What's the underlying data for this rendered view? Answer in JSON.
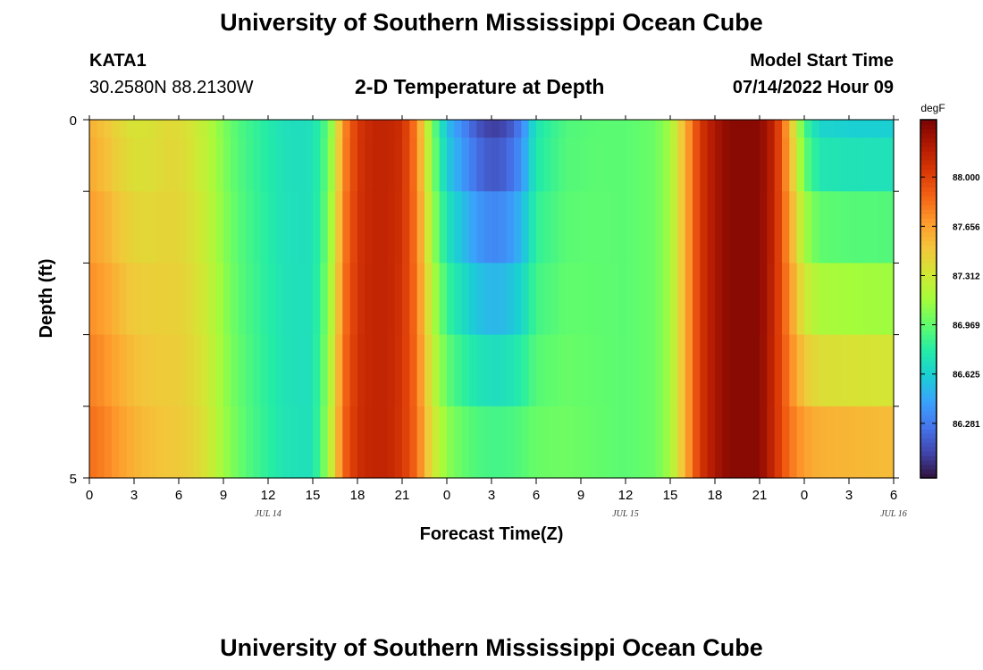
{
  "header": {
    "title": "University of Southern Mississippi Ocean Cube",
    "station": "KATA1",
    "coords": "30.2580N  88.2130W",
    "plot_title": "2-D Temperature at Depth",
    "model_start_label": "Model Start Time",
    "model_start_value": "07/14/2022 Hour 09"
  },
  "footer": {
    "title": "University of Southern Mississippi Ocean Cube"
  },
  "chart_data": {
    "type": "heatmap",
    "title": "2-D Temperature at Depth",
    "xlabel": "Forecast Time(Z)",
    "ylabel": "Depth (ft)",
    "x_tick_labels": [
      "0",
      "3",
      "6",
      "9",
      "12",
      "15",
      "18",
      "21",
      "0",
      "3",
      "6",
      "9",
      "12",
      "15",
      "18",
      "21",
      "0",
      "3",
      "6"
    ],
    "date_labels": [
      {
        "label": "JUL 14",
        "hour": 12
      },
      {
        "label": "JUL 15",
        "hour": 36
      },
      {
        "label": "JUL 16",
        "hour": 54
      }
    ],
    "y_tick_labels": [
      {
        "depth": 0,
        "label": "0"
      },
      {
        "depth": 5,
        "label": "5"
      }
    ],
    "x_range_hours": [
      0,
      54
    ],
    "y_range_ft": [
      0,
      5
    ],
    "depth_levels_ft": [
      0,
      0.5,
      1.5,
      2.5,
      3.5,
      4.5
    ],
    "colorbar": {
      "unit": "degF",
      "min": 85.9,
      "max": 88.4,
      "tick_labels": [
        "88.000",
        "87.656",
        "87.312",
        "86.969",
        "86.625",
        "86.281"
      ],
      "colors": [
        "#30123b",
        "#4145ab",
        "#4675ed",
        "#39a2fc",
        "#1bcfd4",
        "#24eca6",
        "#61fc6c",
        "#a4fc3b",
        "#d1e834",
        "#f3c63a",
        "#fe9b2d",
        "#f36315",
        "#d93806",
        "#b11901",
        "#7a0403"
      ]
    },
    "temperature_profile": [
      {
        "hour": 0,
        "surface": 87.6,
        "bottom": 87.85
      },
      {
        "hour": 1,
        "surface": 87.52,
        "bottom": 87.8
      },
      {
        "hour": 2,
        "surface": 87.42,
        "bottom": 87.7
      },
      {
        "hour": 3,
        "surface": 87.35,
        "bottom": 87.62
      },
      {
        "hour": 4,
        "surface": 87.36,
        "bottom": 87.56
      },
      {
        "hour": 5,
        "surface": 87.4,
        "bottom": 87.52
      },
      {
        "hour": 6,
        "surface": 87.4,
        "bottom": 87.5
      },
      {
        "hour": 7,
        "surface": 87.33,
        "bottom": 87.45
      },
      {
        "hour": 8,
        "surface": 87.22,
        "bottom": 87.34
      },
      {
        "hour": 9,
        "surface": 87.05,
        "bottom": 87.15
      },
      {
        "hour": 10,
        "surface": 86.92,
        "bottom": 87.0
      },
      {
        "hour": 11,
        "surface": 86.85,
        "bottom": 86.9
      },
      {
        "hour": 12,
        "surface": 86.78,
        "bottom": 86.82
      },
      {
        "hour": 13,
        "surface": 86.72,
        "bottom": 86.75
      },
      {
        "hour": 14,
        "surface": 86.7,
        "bottom": 86.72
      },
      {
        "hour": 15,
        "surface": 86.72,
        "bottom": 86.72
      },
      {
        "hour": 16,
        "surface": 86.95,
        "bottom": 87.15
      },
      {
        "hour": 16.5,
        "surface": 87.25,
        "bottom": 87.45
      },
      {
        "hour": 17,
        "surface": 87.7,
        "bottom": 87.85
      },
      {
        "hour": 18,
        "surface": 88.05,
        "bottom": 88.1
      },
      {
        "hour": 19,
        "surface": 88.15,
        "bottom": 88.15
      },
      {
        "hour": 20,
        "surface": 88.15,
        "bottom": 88.15
      },
      {
        "hour": 21,
        "surface": 88.1,
        "bottom": 88.05
      },
      {
        "hour": 22,
        "surface": 87.75,
        "bottom": 87.85
      },
      {
        "hour": 23,
        "surface": 87.05,
        "bottom": 87.4
      },
      {
        "hour": 24,
        "surface": 86.55,
        "bottom": 87.15
      },
      {
        "hour": 25,
        "surface": 86.35,
        "bottom": 87.05
      },
      {
        "hour": 26,
        "surface": 86.15,
        "bottom": 87.0
      },
      {
        "hour": 27,
        "surface": 86.05,
        "bottom": 86.98
      },
      {
        "hour": 28,
        "surface": 86.1,
        "bottom": 86.98
      },
      {
        "hour": 29,
        "surface": 86.3,
        "bottom": 87.0
      },
      {
        "hour": 30,
        "surface": 86.75,
        "bottom": 87.02
      },
      {
        "hour": 32,
        "surface": 86.92,
        "bottom": 87.02
      },
      {
        "hour": 34,
        "surface": 86.95,
        "bottom": 86.98
      },
      {
        "hour": 36,
        "surface": 86.95,
        "bottom": 86.95
      },
      {
        "hour": 38,
        "surface": 87.0,
        "bottom": 87.0
      },
      {
        "hour": 39,
        "surface": 87.15,
        "bottom": 87.15
      },
      {
        "hour": 40,
        "surface": 87.6,
        "bottom": 87.6
      },
      {
        "hour": 41,
        "surface": 88.05,
        "bottom": 88.05
      },
      {
        "hour": 42,
        "surface": 88.25,
        "bottom": 88.25
      },
      {
        "hour": 43,
        "surface": 88.35,
        "bottom": 88.35
      },
      {
        "hour": 45,
        "surface": 88.35,
        "bottom": 88.35
      },
      {
        "hour": 46,
        "surface": 88.15,
        "bottom": 88.1
      },
      {
        "hour": 47,
        "surface": 87.6,
        "bottom": 87.85
      },
      {
        "hour": 48,
        "surface": 86.9,
        "bottom": 87.75
      },
      {
        "hour": 49,
        "surface": 86.65,
        "bottom": 87.7
      },
      {
        "hour": 51,
        "surface": 86.62,
        "bottom": 87.68
      },
      {
        "hour": 54,
        "surface": 86.62,
        "bottom": 87.65
      }
    ]
  }
}
